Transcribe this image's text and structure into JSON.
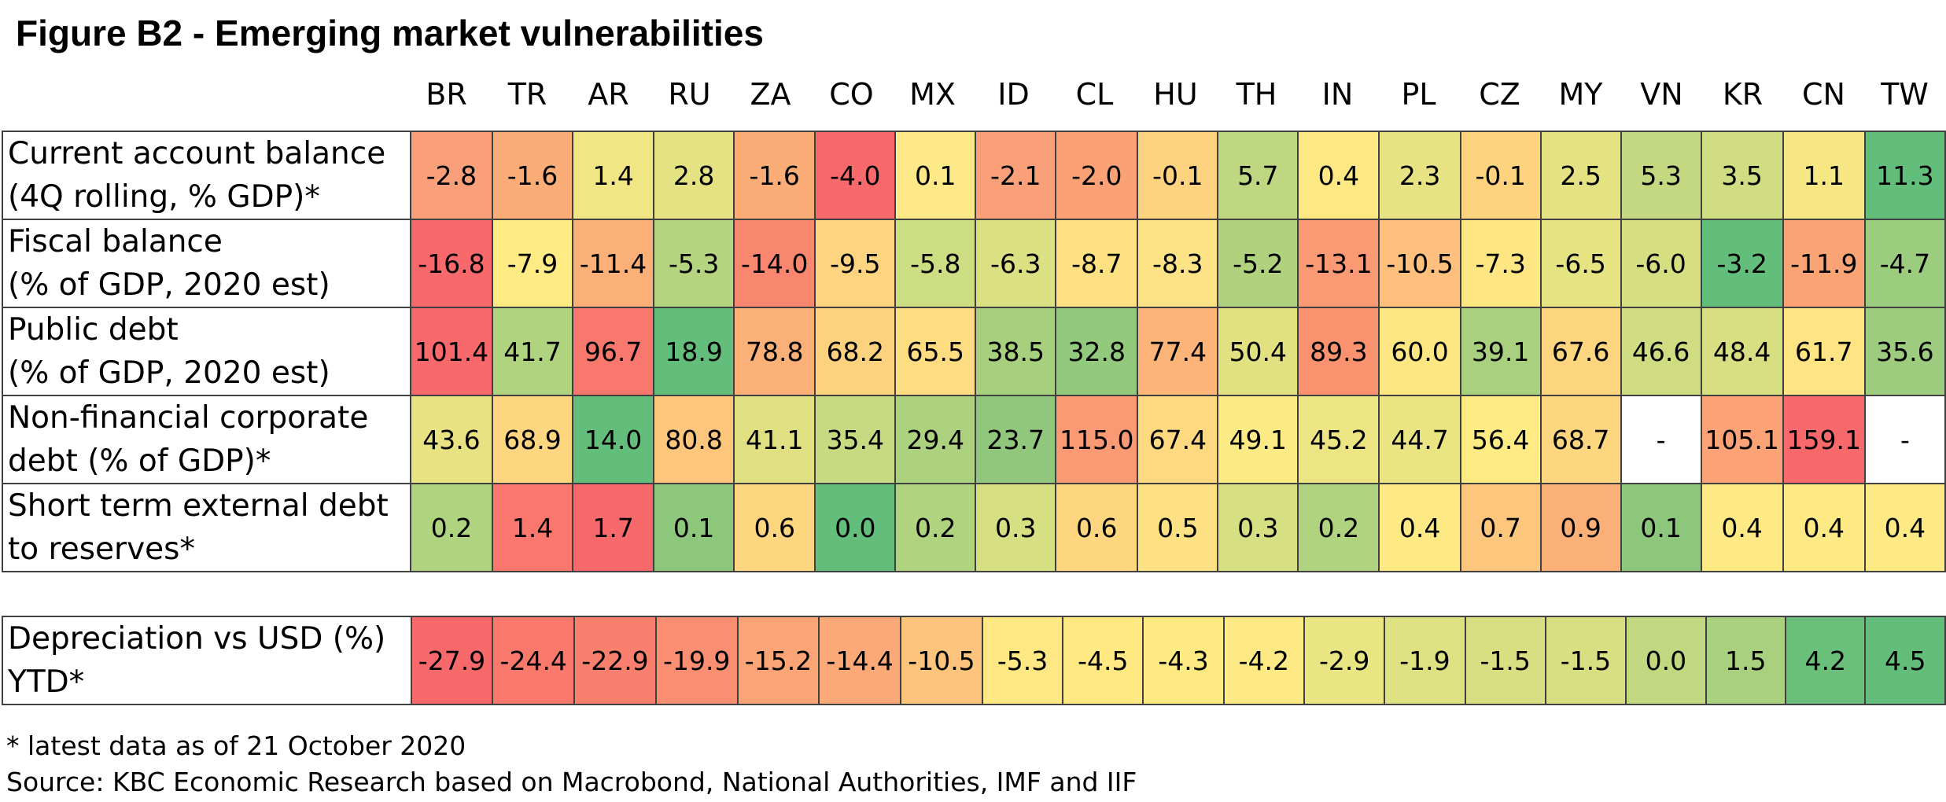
{
  "title": "Figure B2 - Emerging market vulnerabilities",
  "footnote": "* latest data as of 21 October 2020",
  "source": "Source: KBC Economic Research based on Macrobond, National Authorities, IMF and IIF",
  "colors": {
    "red": "#f8696b",
    "orange": "#fba276",
    "yellow": "#ffeb84",
    "light_green": "#cddd82",
    "green": "#63be7b",
    "no_data": "#ffffff",
    "border": "#404040"
  },
  "chart_data": {
    "type": "table",
    "title": "Figure B2 - Emerging market vulnerabilities",
    "color_scale": "red (more vulnerable) - yellow - green (less vulnerable)",
    "countries": [
      "BR",
      "TR",
      "AR",
      "RU",
      "ZA",
      "CO",
      "MX",
      "ID",
      "CL",
      "HU",
      "TH",
      "IN",
      "PL",
      "CZ",
      "MY",
      "VN",
      "KR",
      "CN",
      "TW"
    ],
    "rows": [
      {
        "label_lines": [
          "Current account balance",
          "(4Q rolling, % GDP)*"
        ],
        "values": [
          "-2.8",
          "-1.6",
          "1.4",
          "2.8",
          "-1.6",
          "-4.0",
          "0.1",
          "-2.1",
          "-2.0",
          "-0.1",
          "5.7",
          "0.4",
          "2.3",
          "-0.1",
          "2.5",
          "5.3",
          "3.5",
          "1.1",
          "11.3"
        ],
        "colors": [
          "#f9a07a",
          "#fbad78",
          "#f0e684",
          "#e4e283",
          "#fbad78",
          "#f8696b",
          "#fde987",
          "#f9a07a",
          "#faa275",
          "#fed380",
          "#bed780",
          "#fde884",
          "#e7e283",
          "#fed380",
          "#e5e283",
          "#c3d880",
          "#d1dd82",
          "#f6e784",
          "#63be7b"
        ]
      },
      {
        "label_lines": [
          "Fiscal balance",
          "(% of GDP, 2020 est)"
        ],
        "values": [
          "-16.8",
          "-7.9",
          "-11.4",
          "-5.3",
          "-14.0",
          "-9.5",
          "-5.8",
          "-6.3",
          "-8.7",
          "-8.3",
          "-5.2",
          "-13.1",
          "-10.5",
          "-7.3",
          "-6.5",
          "-6.0",
          "-3.2",
          "-11.9",
          "-4.7"
        ],
        "colors": [
          "#f8696b",
          "#ffeb84",
          "#fbb078",
          "#b4d47f",
          "#f9876f",
          "#fed480",
          "#cddd82",
          "#dbe083",
          "#fee182",
          "#fde386",
          "#b0d27f",
          "#fa9a74",
          "#fec07c",
          "#fee683",
          "#e6e383",
          "#d6de82",
          "#63be7b",
          "#faa476",
          "#9ccc7e"
        ]
      },
      {
        "label_lines": [
          "Public debt",
          "(% of GDP, 2020 est)"
        ],
        "values": [
          "101.4",
          "41.7",
          "96.7",
          "18.9",
          "78.8",
          "68.2",
          "65.5",
          "38.5",
          "32.8",
          "77.4",
          "50.4",
          "89.3",
          "60.0",
          "39.1",
          "67.6",
          "46.6",
          "48.4",
          "61.7",
          "35.6"
        ],
        "colors": [
          "#f8696b",
          "#b0d380",
          "#f9786d",
          "#63be7b",
          "#fbb078",
          "#fdd27f",
          "#fedc81",
          "#a6cf7e",
          "#92c97d",
          "#fcb478",
          "#e1e182",
          "#fa926f",
          "#fde783",
          "#a8d07f",
          "#fed57f",
          "#cfdc82",
          "#d7df82",
          "#fee483",
          "#9dcc7e"
        ]
      },
      {
        "label_lines": [
          "Non-financial corporate",
          "debt (% of GDP)*"
        ],
        "values": [
          "43.6",
          "68.9",
          "14.0",
          "80.8",
          "41.1",
          "35.4",
          "29.4",
          "23.7",
          "115.0",
          "67.4",
          "49.1",
          "45.2",
          "44.7",
          "56.4",
          "68.7",
          "-",
          "105.1",
          "159.1",
          "-"
        ],
        "colors": [
          "#e8e283",
          "#fed680",
          "#63be7b",
          "#fec57d",
          "#e0e082",
          "#c8da81",
          "#acd17f",
          "#90c77c",
          "#fa9a74",
          "#fed980",
          "#fcea84",
          "#ede483",
          "#eae483",
          "#feeb84",
          "#fed680",
          "#ffffff",
          "#fba276",
          "#f8696b",
          "#ffffff"
        ]
      },
      {
        "label_lines": [
          "Short term external debt",
          "to reserves*"
        ],
        "values": [
          "0.2",
          "1.4",
          "1.7",
          "0.1",
          "0.6",
          "0.0",
          "0.2",
          "0.3",
          "0.6",
          "0.5",
          "0.3",
          "0.2",
          "0.4",
          "0.7",
          "0.9",
          "0.1",
          "0.4",
          "0.4",
          "0.4"
        ],
        "colors": [
          "#b0d37f",
          "#f9776d",
          "#f8696b",
          "#8cc77c",
          "#fed680",
          "#63be7b",
          "#b0d37f",
          "#d6df82",
          "#fed680",
          "#fde183",
          "#d6df82",
          "#b0d37f",
          "#fdea84",
          "#fdc67d",
          "#fbb078",
          "#8cc77c",
          "#fdea84",
          "#fdea84",
          "#fdea84"
        ]
      }
    ],
    "separate_row": {
      "label_lines": [
        "Depreciation vs USD (%)",
        "YTD*"
      ],
      "values": [
        "-27.9",
        "-24.4",
        "-22.9",
        "-19.9",
        "-15.2",
        "-14.4",
        "-10.5",
        "-5.3",
        "-4.5",
        "-4.3",
        "-4.2",
        "-2.9",
        "-1.9",
        "-1.5",
        "-1.5",
        "0.0",
        "1.5",
        "4.2",
        "4.5"
      ],
      "colors": [
        "#f8696b",
        "#f9796d",
        "#f9806f",
        "#fa8e72",
        "#fba577",
        "#fba977",
        "#fdc47d",
        "#fee883",
        "#fee983",
        "#feea83",
        "#feea84",
        "#eae583",
        "#dee182",
        "#d8df82",
        "#d8df82",
        "#c1d880",
        "#a9d07f",
        "#6ac07b",
        "#63be7b"
      ]
    }
  }
}
